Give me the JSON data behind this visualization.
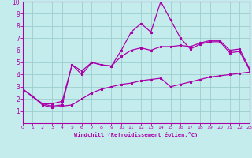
{
  "xlabel": "Windchill (Refroidissement éolien,°C)",
  "xlim": [
    0,
    23
  ],
  "ylim": [
    0,
    10
  ],
  "xticks": [
    0,
    1,
    2,
    3,
    4,
    5,
    6,
    7,
    8,
    9,
    10,
    11,
    12,
    13,
    14,
    15,
    16,
    17,
    18,
    19,
    20,
    21,
    22,
    23
  ],
  "yticks": [
    1,
    2,
    3,
    4,
    5,
    6,
    7,
    8,
    9,
    10
  ],
  "background_color": "#c5ecec",
  "grid_color": "#9dcece",
  "line_color": "#aa00aa",
  "main_x": [
    0,
    1,
    2,
    3,
    4,
    5,
    6,
    7,
    8,
    9,
    10,
    11,
    12,
    13,
    14,
    15,
    16,
    17,
    18,
    19,
    20,
    21,
    22,
    23
  ],
  "main_y": [
    2.8,
    2.2,
    1.6,
    1.4,
    1.5,
    4.8,
    4.0,
    5.0,
    4.8,
    4.7,
    6.0,
    7.5,
    8.2,
    7.5,
    10.0,
    8.5,
    7.0,
    6.1,
    6.5,
    6.7,
    6.7,
    5.8,
    5.9,
    4.4
  ],
  "min_x": [
    0,
    1,
    2,
    3,
    4,
    5,
    6,
    7,
    8,
    9,
    10,
    11,
    12,
    13,
    14,
    15,
    16,
    17,
    18,
    19,
    20,
    21,
    22,
    23
  ],
  "min_y": [
    2.8,
    2.2,
    1.5,
    1.3,
    1.4,
    1.5,
    2.0,
    2.5,
    2.8,
    3.0,
    3.2,
    3.3,
    3.5,
    3.6,
    3.7,
    3.0,
    3.2,
    3.4,
    3.6,
    3.8,
    3.9,
    4.0,
    4.1,
    4.2
  ],
  "max_x": [
    0,
    1,
    2,
    3,
    4,
    5,
    6,
    7,
    8,
    9,
    10,
    11,
    12,
    13,
    14,
    15,
    16,
    17,
    18,
    19,
    20,
    21,
    22,
    23
  ],
  "max_y": [
    2.8,
    2.2,
    1.6,
    1.6,
    1.8,
    4.8,
    4.3,
    5.0,
    4.8,
    4.7,
    5.5,
    6.0,
    6.2,
    6.0,
    6.3,
    6.3,
    6.4,
    6.3,
    6.6,
    6.8,
    6.8,
    6.0,
    6.1,
    4.5
  ]
}
